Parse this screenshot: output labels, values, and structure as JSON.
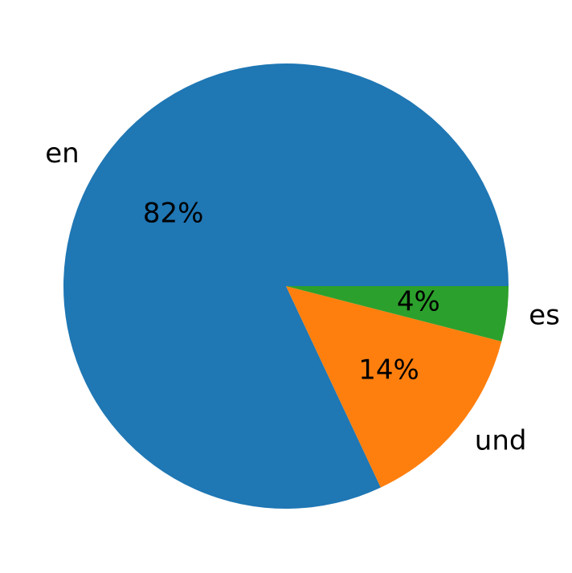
{
  "chart_data": {
    "type": "pie",
    "categories": [
      "en",
      "und",
      "es"
    ],
    "values": [
      82,
      14,
      4
    ],
    "value_labels": [
      "82%",
      "14%",
      "4%"
    ],
    "colors": [
      "#1f77b4",
      "#ff7f0e",
      "#2ca02c"
    ],
    "start_angle": 0,
    "direction": "counterclockwise"
  }
}
